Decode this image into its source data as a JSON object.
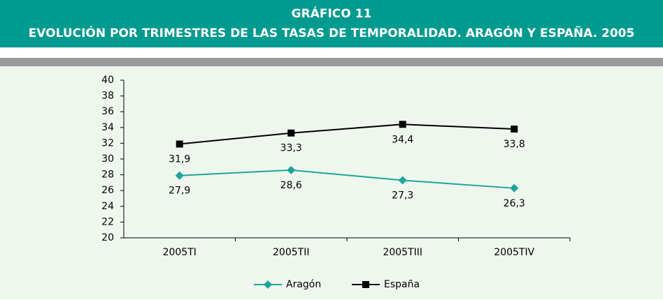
{
  "chart_data": {
    "type": "line",
    "title": "GRÁFICO 11",
    "subtitle": "EVOLUCIÓN POR TRIMESTRES DE LAS TASAS DE TEMPORALIDAD. ARAGÓN Y ESPAÑA. 2005",
    "categories": [
      "2005TI",
      "2005TII",
      "2005TIII",
      "2005TIV"
    ],
    "series": [
      {
        "name": "Aragón",
        "color": "#1ea59b",
        "marker": "diamond",
        "values": [
          27.9,
          28.6,
          27.3,
          26.3
        ],
        "value_labels": [
          "27,9",
          "28,6",
          "27,3",
          "26,3"
        ]
      },
      {
        "name": "España",
        "color": "#000000",
        "marker": "square",
        "values": [
          31.9,
          33.3,
          34.4,
          33.8
        ],
        "value_labels": [
          "31,9",
          "33,3",
          "34,4",
          "33,8"
        ]
      }
    ],
    "ylim": [
      20,
      40
    ],
    "yticks": [
      20,
      22,
      24,
      26,
      28,
      30,
      32,
      34,
      36,
      38,
      40
    ],
    "legend": "bottom"
  }
}
